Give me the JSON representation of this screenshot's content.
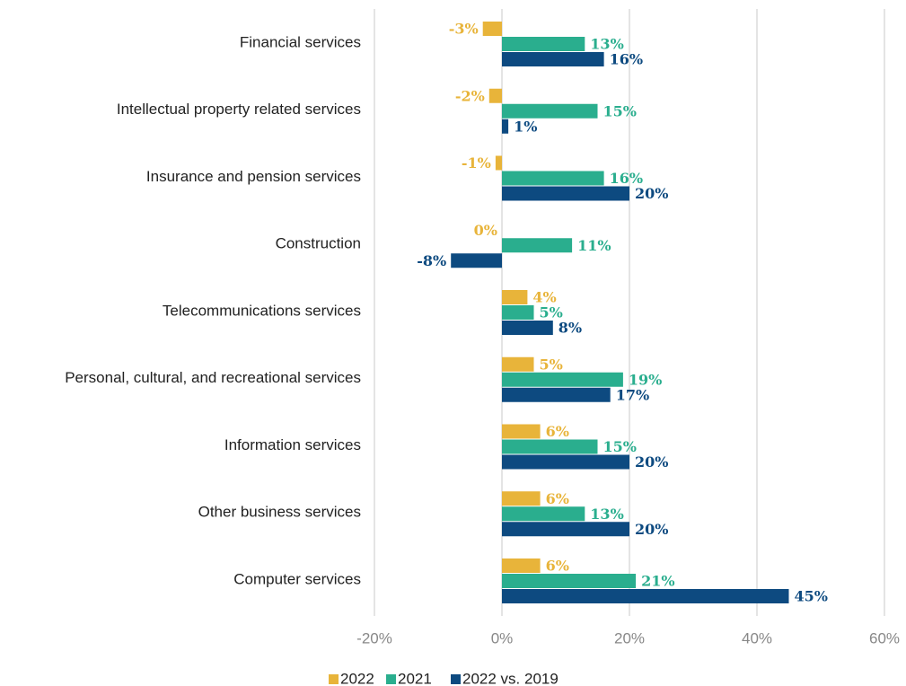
{
  "chart_data": {
    "type": "barh",
    "categories": [
      "Financial services",
      "Intellectual property related services",
      "Insurance and pension services",
      "Construction",
      "Telecommunications services",
      "Personal, cultural, and recreational services",
      "Information services",
      "Other business services",
      "Computer services"
    ],
    "series": [
      {
        "name": "2022",
        "color": "#e8b43a",
        "values": [
          -3,
          -2,
          -1,
          0,
          4,
          5,
          6,
          6,
          6
        ],
        "value_labels": [
          "-3%",
          "-2%",
          "-1%",
          "0%",
          "4%",
          "5%",
          "6%",
          "6%",
          "6%"
        ]
      },
      {
        "name": "2021",
        "color": "#2aae8e",
        "values": [
          13,
          15,
          16,
          11,
          5,
          19,
          15,
          13,
          21
        ],
        "value_labels": [
          "13%",
          "15%",
          "16%",
          "11%",
          "5%",
          "19%",
          "15%",
          "13%",
          "21%"
        ]
      },
      {
        "name": "2022 vs. 2019",
        "color": "#0d4a80",
        "values": [
          16,
          1,
          20,
          -8,
          8,
          17,
          20,
          20,
          45
        ],
        "value_labels": [
          "16%",
          "1%",
          "20%",
          "-8%",
          "8%",
          "17%",
          "20%",
          "20%",
          "45%"
        ]
      }
    ],
    "xlim": [
      -20,
      60
    ],
    "xticks": [
      {
        "value": -20,
        "label": "-20%"
      },
      {
        "value": 0,
        "label": "0%"
      },
      {
        "value": 20,
        "label": "20%"
      },
      {
        "value": 40,
        "label": "40%"
      },
      {
        "value": 60,
        "label": "60%"
      }
    ],
    "grid": true
  }
}
